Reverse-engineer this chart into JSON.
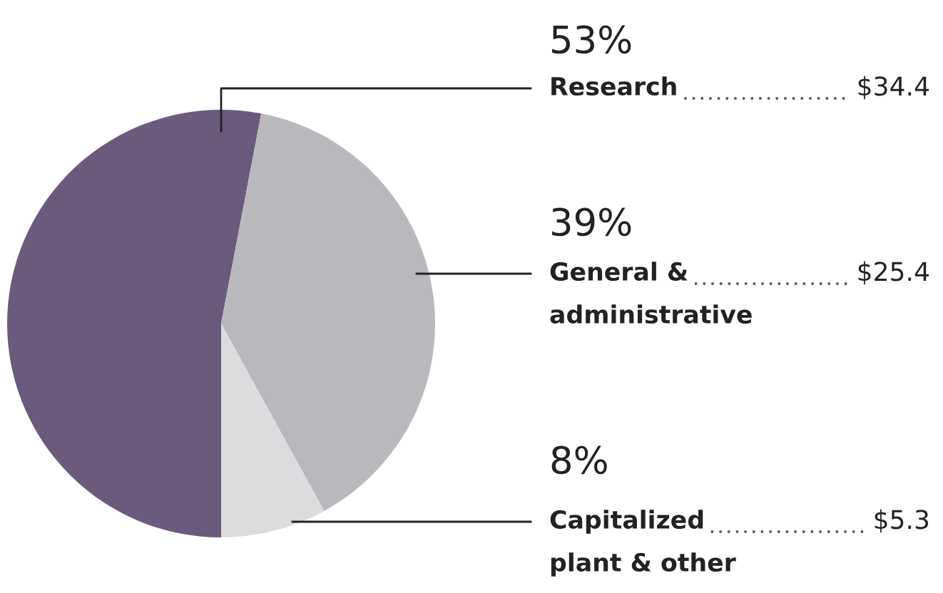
{
  "chart_data": {
    "type": "pie",
    "categories": [
      "Research",
      "General &\nadministrative",
      "Capitalized\nplant & other"
    ],
    "values": [
      53,
      39,
      8
    ],
    "annotations": [
      "53%",
      "$34.4",
      "39%",
      "$25.4",
      "8%",
      "$5.3"
    ],
    "colors": [
      "#6b5a7b",
      "#b9b9bd",
      "#dcdcde"
    ],
    "legend": false
  }
}
